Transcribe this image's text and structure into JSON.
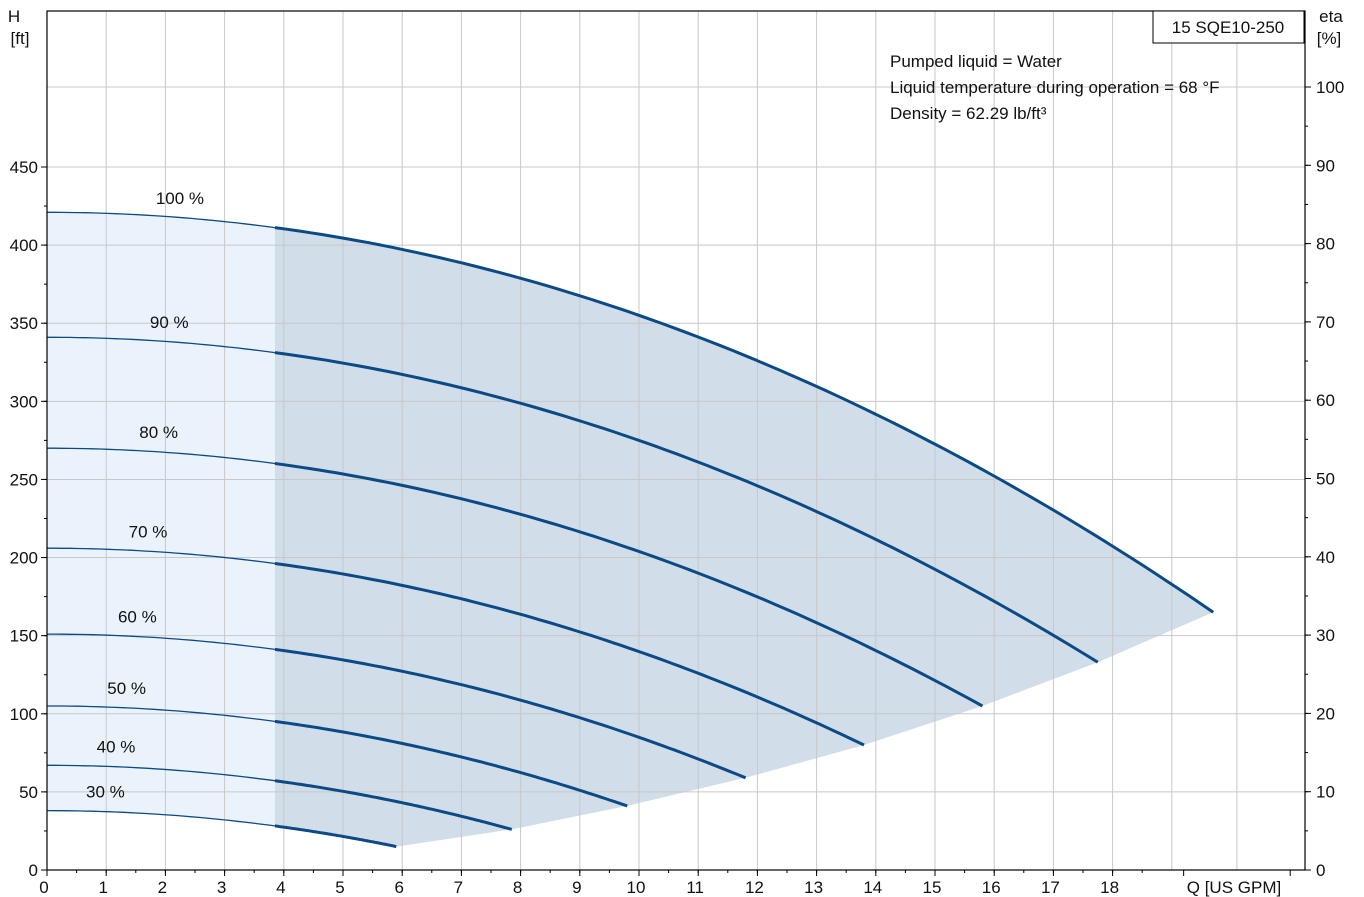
{
  "chart_data": {
    "type": "line",
    "model_label": "15 SQE10-250",
    "info_lines": [
      "Pumped liquid = Water",
      "Liquid temperature during operation = 68 °F",
      "Density = 62.29 lb/ft³"
    ],
    "y_left": {
      "label_line1": "H",
      "label_line2": "[ft]",
      "range": [
        0,
        450
      ],
      "ticks": [
        0,
        50,
        100,
        150,
        200,
        250,
        300,
        350,
        400,
        450
      ]
    },
    "y_right": {
      "label_line1": "eta",
      "label_line2": "[%]",
      "range": [
        0,
        100
      ],
      "ticks": [
        0,
        10,
        20,
        30,
        40,
        50,
        60,
        70,
        80,
        90,
        100
      ]
    },
    "x": {
      "label": "Q [US GPM]",
      "range": [
        0,
        18
      ],
      "ticks": [
        0,
        1,
        2,
        3,
        4,
        5,
        6,
        7,
        8,
        9,
        10,
        11,
        12,
        13,
        14,
        15,
        16,
        17,
        18
      ]
    },
    "grid": true,
    "colors": {
      "curve": "#0b4a85",
      "region_light": "#eaf3fc",
      "region_dark": "#d1dde9",
      "grid": "#c8c8c8"
    },
    "min_flow_q": 3.85,
    "series": [
      {
        "name": "100 %",
        "h0": 421,
        "q_end": 19.7,
        "h_end": 165
      },
      {
        "name": "90 %",
        "h0": 341,
        "q_end": 17.75,
        "h_end": 133
      },
      {
        "name": "80 %",
        "h0": 270,
        "q_end": 15.8,
        "h_end": 105
      },
      {
        "name": "70 %",
        "h0": 206,
        "q_end": 13.8,
        "h_end": 80
      },
      {
        "name": "60 %",
        "h0": 151,
        "q_end": 11.8,
        "h_end": 59
      },
      {
        "name": "50 %",
        "h0": 105,
        "q_end": 9.8,
        "h_end": 41
      },
      {
        "name": "40 %",
        "h0": 67,
        "q_end": 7.85,
        "h_end": 26
      },
      {
        "name": "30 %",
        "h0": 38,
        "q_end": 5.9,
        "h_end": 15
      }
    ]
  }
}
